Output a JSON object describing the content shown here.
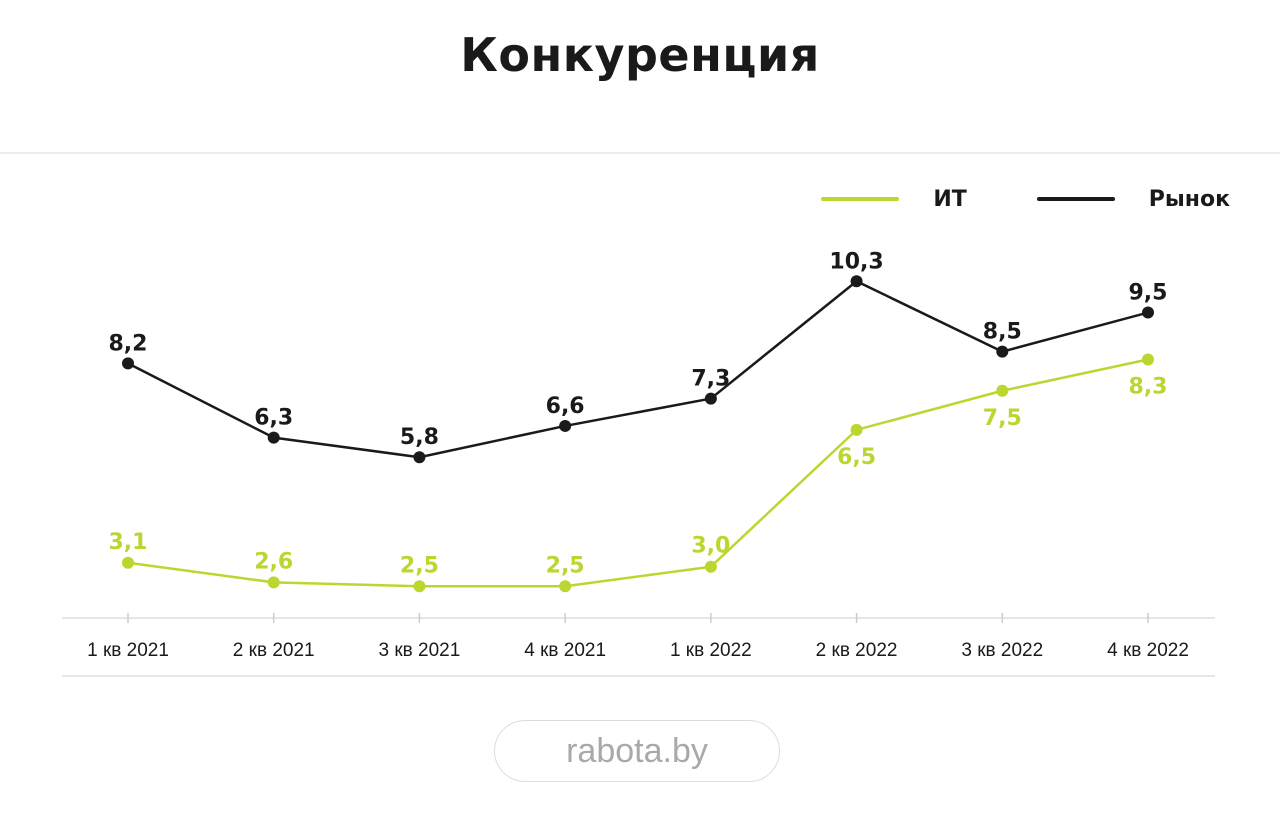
{
  "colors": {
    "it": "#bcd630",
    "market": "#1a1a1a",
    "axis": "#dddddd",
    "text": "#1a1a1a"
  },
  "chart_data": {
    "type": "line",
    "title": "Конкуренция",
    "categories": [
      "1 кв 2021",
      "2 кв 2021",
      "3 кв 2021",
      "4 кв 2021",
      "1 кв 2022",
      "2 кв 2022",
      "3 кв 2022",
      "4 кв 2022"
    ],
    "series": [
      {
        "name": "ИТ",
        "values": [
          3.1,
          2.6,
          2.5,
          2.5,
          3.0,
          6.5,
          7.5,
          8.3
        ],
        "labels": [
          "3,1",
          "2,6",
          "2,5",
          "2,5",
          "3,0",
          "6,5",
          "7,5",
          "8,3"
        ],
        "color": "#bcd630"
      },
      {
        "name": "Рынок",
        "values": [
          8.2,
          6.3,
          5.8,
          6.6,
          7.3,
          10.3,
          8.5,
          9.5
        ],
        "labels": [
          "8,2",
          "6,3",
          "5,8",
          "6,6",
          "7,3",
          "10,3",
          "8,5",
          "9,5"
        ],
        "color": "#1a1a1a"
      }
    ],
    "xlabel": "",
    "ylabel": "",
    "grid": false,
    "legend": "top-right"
  },
  "footer": {
    "source": "rabota.by"
  }
}
